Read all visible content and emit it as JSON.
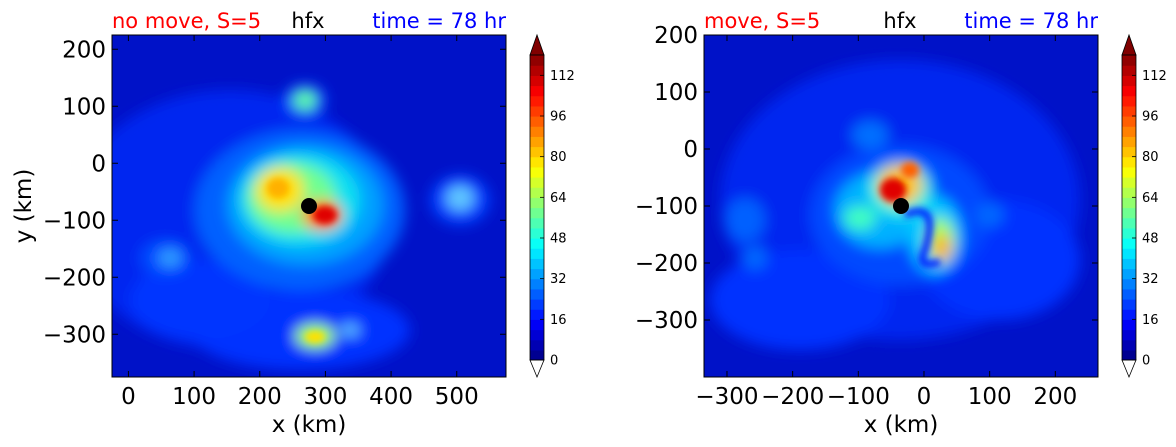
{
  "colors": {
    "title_left": "#ff0000",
    "title_center": "#000000",
    "title_right": "#0000ff",
    "field_background": "#0012c8",
    "storm_center_marker": "#000000"
  },
  "colorbar": {
    "colormap": "jet",
    "levels_min": 0,
    "levels_max": 120,
    "level_step": 4,
    "ticks": [
      "0",
      "16",
      "32",
      "48",
      "64",
      "80",
      "96",
      "112"
    ],
    "extend": "both"
  },
  "chart_data": [
    {
      "type": "contourf",
      "title_left": "no move, S=5",
      "title_center": "hfx",
      "title_right": "time = 78 hr",
      "xlabel": "x (km)",
      "ylabel": "y (km)",
      "xlim": [
        -25,
        575
      ],
      "ylim": [
        -375,
        225
      ],
      "xticks": [
        "0",
        "100",
        "200",
        "300",
        "400",
        "500"
      ],
      "yticks": [
        "200",
        "100",
        "0",
        "−100",
        "−200",
        "−300"
      ],
      "storm_center": [
        275,
        -75
      ]
    },
    {
      "type": "contourf",
      "title_left": "move, S=5",
      "title_center": "hfx",
      "title_right": "time = 78 hr",
      "xlabel": "x (km)",
      "ylabel": "",
      "xlim": [
        -335,
        265
      ],
      "ylim": [
        -400,
        200
      ],
      "xticks": [
        "−300",
        "−200",
        "−100",
        "0",
        "100",
        "200"
      ],
      "yticks": [
        "200",
        "100",
        "0",
        "−100",
        "−200",
        "−300"
      ],
      "storm_center": [
        -35,
        -100
      ]
    }
  ]
}
